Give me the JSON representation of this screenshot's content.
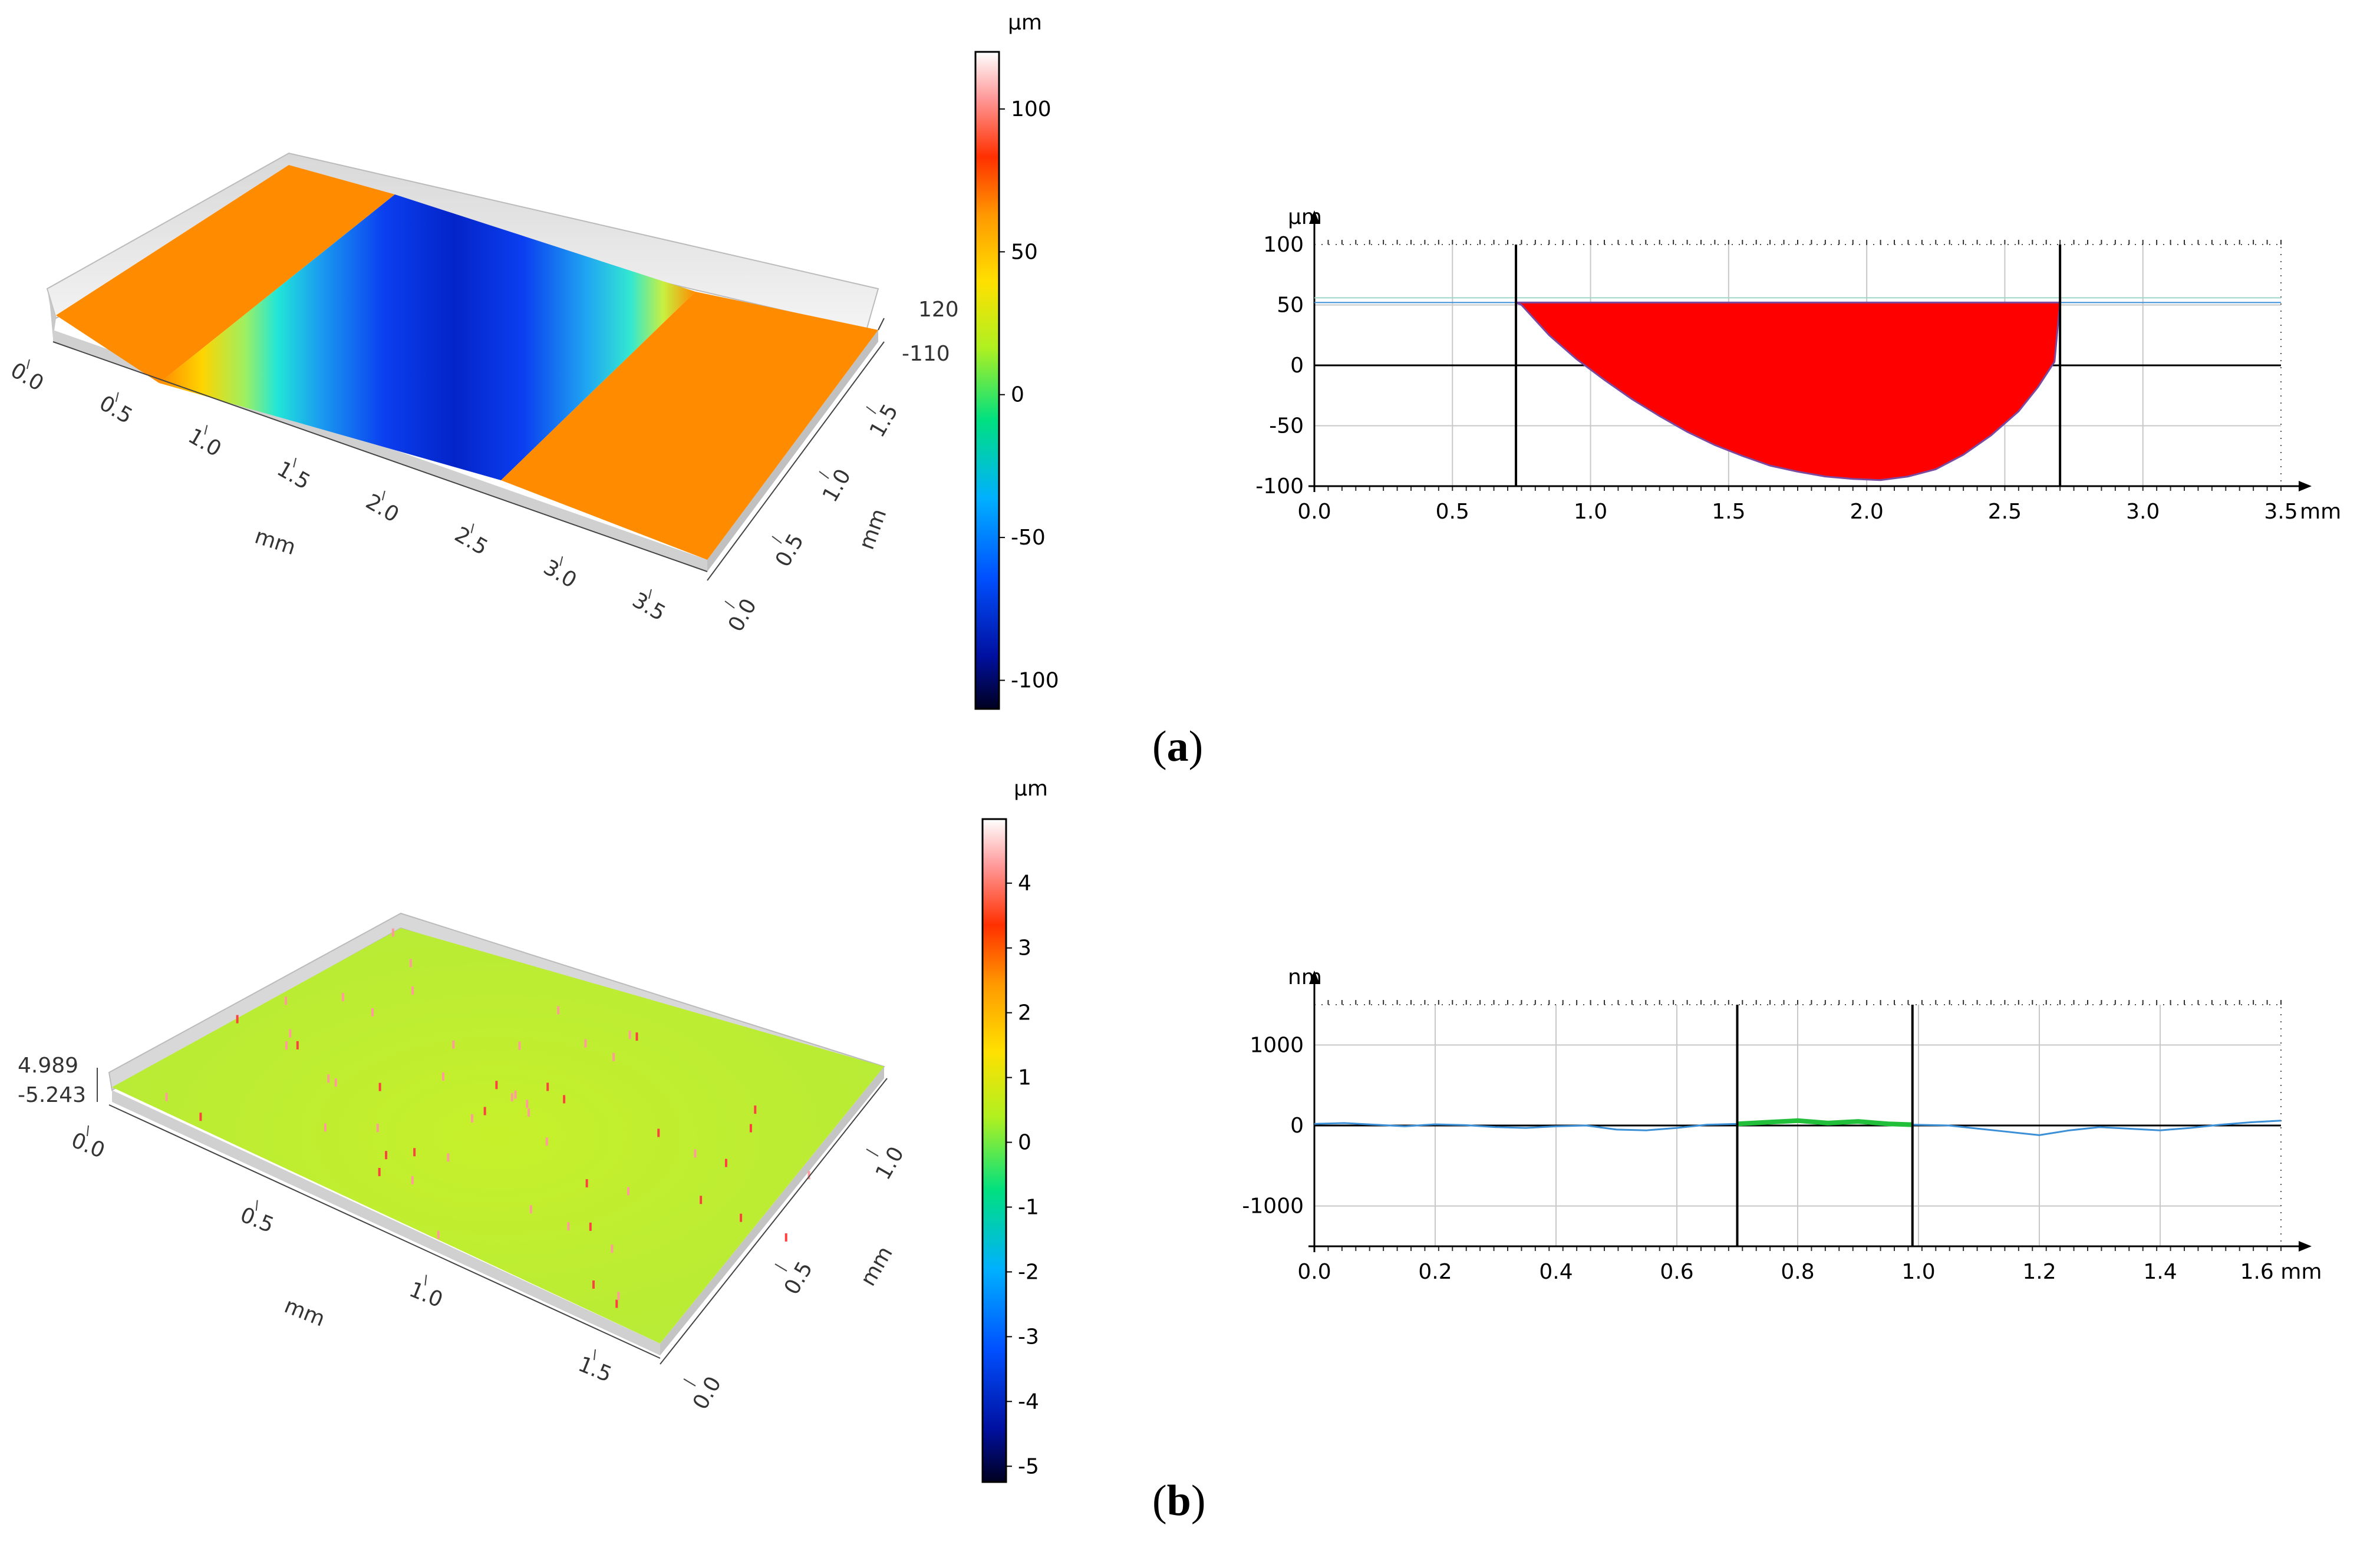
{
  "panels": [
    {
      "label_open": "(",
      "label_letter": "a",
      "label_close": ")",
      "surface": {
        "type": "3d-surface",
        "x_axis": {
          "label": "mm",
          "ticks": [
            "0.0",
            "0.5",
            "1.0",
            "1.5",
            "2.0",
            "2.5",
            "3.0",
            "3.5"
          ]
        },
        "y_axis": {
          "label": "mm",
          "ticks": [
            "0.0",
            "0.5",
            "1.0",
            "1.5"
          ]
        },
        "z_axis": {
          "ticks": [
            "120",
            "-110"
          ]
        },
        "colorbar": {
          "unit": "µm",
          "ticks": [
            "100",
            "50",
            "0",
            "-50",
            "-100"
          ],
          "min": -110,
          "max": 120
        }
      },
      "profile": {
        "type": "area",
        "ylabel": "µm",
        "xlabel": "mm",
        "xlim": [
          0,
          3.5
        ],
        "ylim": [
          -100,
          100
        ],
        "x_ticks": [
          "0.0",
          "0.5",
          "1.0",
          "1.5",
          "2.0",
          "2.5",
          "3.0",
          "3.5"
        ],
        "y_ticks": [
          "100",
          "50",
          "0",
          "-50",
          "-100"
        ],
        "cursors": [
          0.73,
          2.7
        ],
        "baseline": 52,
        "x": [
          0,
          0.73,
          0.75,
          0.85,
          0.95,
          1.05,
          1.15,
          1.25,
          1.35,
          1.45,
          1.55,
          1.65,
          1.75,
          1.85,
          1.95,
          2.05,
          2.15,
          2.25,
          2.35,
          2.45,
          2.55,
          2.62,
          2.68,
          2.7,
          3.5
        ],
        "y": [
          53,
          53,
          50,
          25,
          5,
          -12,
          -28,
          -42,
          -55,
          -66,
          -75,
          -83,
          -88,
          -92,
          -94,
          -95,
          -92,
          -86,
          -74,
          -58,
          -38,
          -18,
          3,
          52,
          52
        ],
        "fill_color": "#ff0000",
        "line_color": "#3a8fd6"
      }
    },
    {
      "label_open": "(",
      "label_letter": "b",
      "label_close": ")",
      "surface": {
        "type": "3d-surface",
        "x_axis": {
          "label": "mm",
          "ticks": [
            "0.0",
            "0.5",
            "1.0",
            "1.5"
          ]
        },
        "y_axis": {
          "label": "mm",
          "ticks": [
            "0.0",
            "0.5",
            "1.0"
          ]
        },
        "z_axis": {
          "ticks": [
            "4.989",
            "-5.243"
          ]
        },
        "colorbar": {
          "unit": "µm",
          "ticks": [
            "4",
            "3",
            "2",
            "1",
            "0",
            "-1",
            "-2",
            "-3",
            "-4",
            "-5"
          ],
          "min": -5.243,
          "max": 4.989
        }
      },
      "profile": {
        "type": "line",
        "ylabel": "nm",
        "xlabel": "mm",
        "xlim": [
          0,
          1.6
        ],
        "ylim": [
          -1500,
          1500
        ],
        "x_ticks": [
          "0.0",
          "0.2",
          "0.4",
          "0.6",
          "0.8",
          "1.0",
          "1.2",
          "1.4",
          "1.6 mm"
        ],
        "y_ticks": [
          "1000",
          "0",
          "-1000"
        ],
        "cursors": [
          0.7,
          0.99
        ],
        "x": [
          0,
          0.05,
          0.1,
          0.15,
          0.2,
          0.25,
          0.3,
          0.35,
          0.4,
          0.45,
          0.5,
          0.55,
          0.6,
          0.65,
          0.7,
          0.75,
          0.8,
          0.85,
          0.9,
          0.95,
          0.99,
          1.05,
          1.1,
          1.15,
          1.2,
          1.25,
          1.3,
          1.35,
          1.4,
          1.45,
          1.5,
          1.55,
          1.6
        ],
        "y": [
          20,
          30,
          10,
          -10,
          15,
          5,
          -20,
          -30,
          -10,
          0,
          -50,
          -60,
          -30,
          10,
          20,
          40,
          60,
          30,
          50,
          20,
          10,
          0,
          -40,
          -80,
          -120,
          -60,
          -20,
          -40,
          -60,
          -30,
          10,
          40,
          60
        ],
        "line_color": "#3a8fd6",
        "segment_color": "#22c03a"
      }
    }
  ]
}
